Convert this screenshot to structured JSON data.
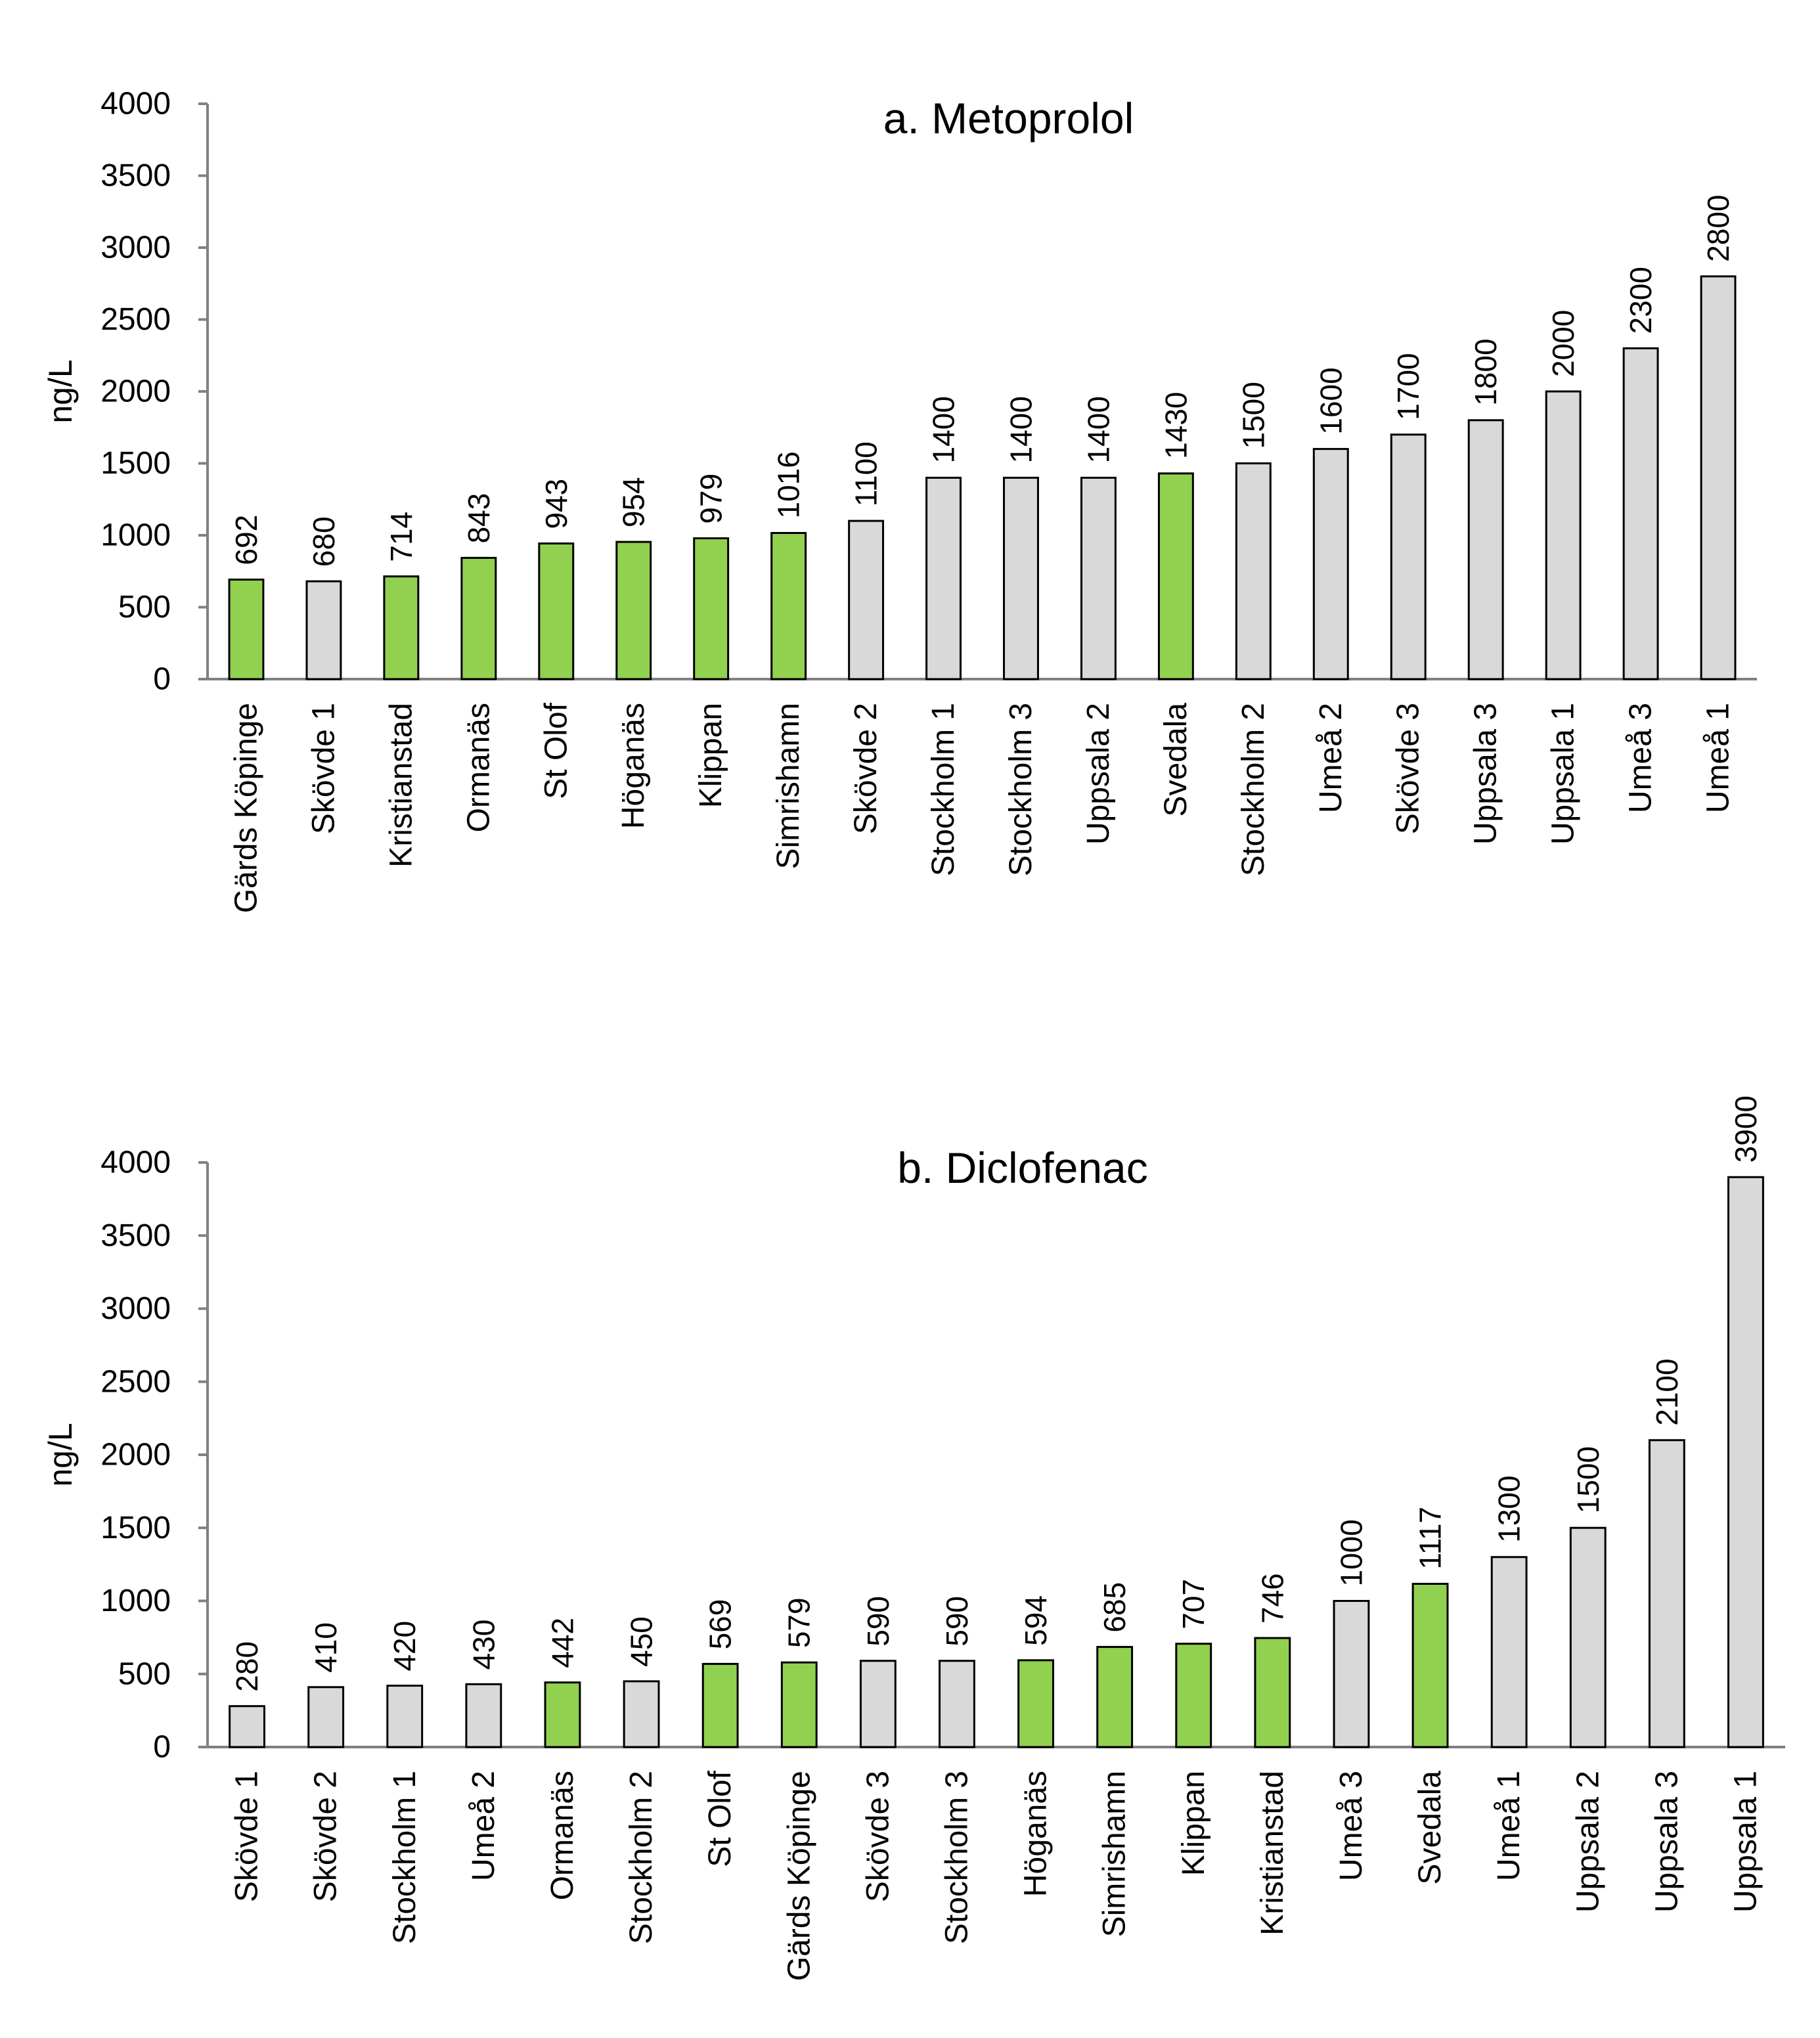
{
  "colors": {
    "highlight": "#92d050",
    "default": "#d9d9d9",
    "outline": "#000000",
    "axis": "#808080"
  },
  "chart_data": [
    {
      "type": "bar",
      "title": "a. Metoprolol",
      "xlabel": "",
      "ylabel": "ng/L",
      "ylim": [
        0,
        4000
      ],
      "yticks": [
        0,
        500,
        1000,
        1500,
        2000,
        2500,
        3000,
        3500,
        4000
      ],
      "categories": [
        "Gärds Köpinge",
        "Skövde 1",
        "Kristianstad",
        "Ormanäs",
        "St Olof",
        "Höganäs",
        "Klippan",
        "Simrishamn",
        "Skövde 2",
        "Stockholm 1",
        "Stockholm 3",
        "Uppsala 2",
        "Svedala",
        "Stockholm 2",
        "Umeå 2",
        "Skövde 3",
        "Uppsala 3",
        "Uppsala 1",
        "Umeå 3",
        "Umeå 1"
      ],
      "values": [
        692,
        680,
        714,
        843,
        943,
        954,
        979,
        1016,
        1100,
        1400,
        1400,
        1400,
        1430,
        1500,
        1600,
        1700,
        1800,
        2000,
        2300,
        2800
      ],
      "highlighted": [
        true,
        false,
        true,
        true,
        true,
        true,
        true,
        true,
        false,
        false,
        false,
        false,
        true,
        false,
        false,
        false,
        false,
        false,
        false,
        false
      ]
    },
    {
      "type": "bar",
      "title": "b. Diclofenac",
      "xlabel": "",
      "ylabel": "ng/L",
      "ylim": [
        0,
        4000
      ],
      "yticks": [
        0,
        500,
        1000,
        1500,
        2000,
        2500,
        3000,
        3500,
        4000
      ],
      "categories": [
        "Skövde 1",
        "Skövde 2",
        "Stockholm 1",
        "Umeå 2",
        "Ormanäs",
        "Stockholm 2",
        "St Olof",
        "Gärds Köpinge",
        "Skövde 3",
        "Stockholm 3",
        "Höganäs",
        "Simrishamn",
        "Klippan",
        "Kristianstad",
        "Umeå 3",
        "Svedala",
        "Umeå 1",
        "Uppsala 2",
        "Uppsala 3",
        "Uppsala 1"
      ],
      "values": [
        280,
        410,
        420,
        430,
        442,
        450,
        569,
        579,
        590,
        590,
        594,
        685,
        707,
        746,
        1000,
        1117,
        1300,
        1500,
        2100,
        3900
      ],
      "highlighted": [
        false,
        false,
        false,
        false,
        true,
        false,
        true,
        true,
        false,
        false,
        true,
        true,
        true,
        true,
        false,
        true,
        false,
        false,
        false,
        false
      ]
    }
  ]
}
